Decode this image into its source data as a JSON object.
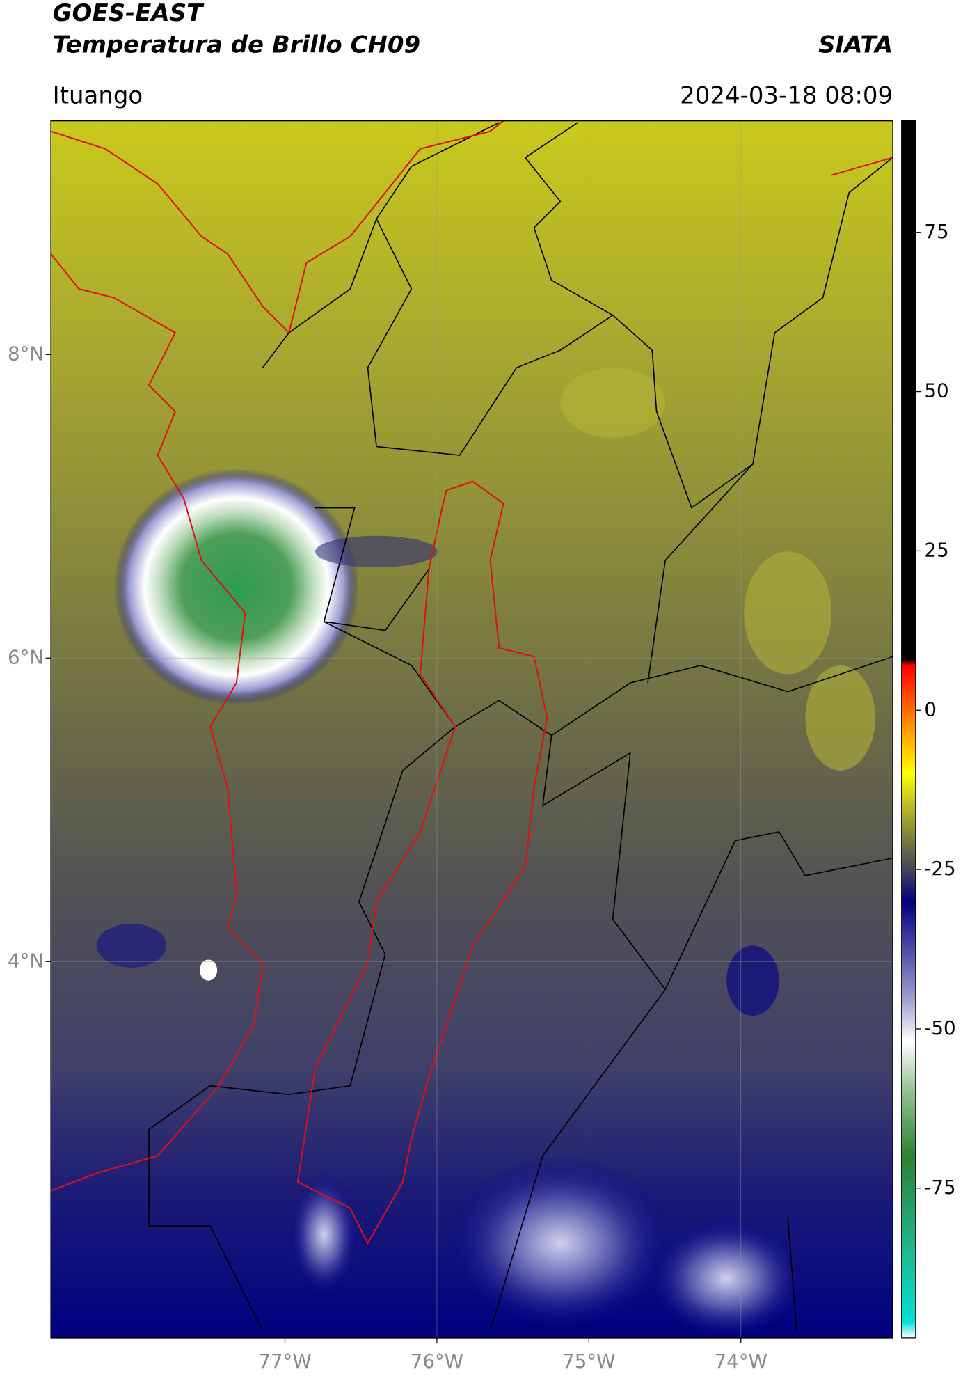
{
  "header": {
    "title": "GOES-EAST",
    "subtitle": "Temperatura de Brillo CH09",
    "source": "SIATA",
    "location": "Ituango",
    "datetime": "2024-03-18 08:09"
  },
  "map": {
    "lat_lim": [
      1.52,
      9.54
    ],
    "lon_lim": [
      -78.54,
      -73.0
    ],
    "lat_ticks": [
      {
        "value": 8,
        "label": "8°N"
      },
      {
        "value": 6,
        "label": "6°N"
      },
      {
        "value": 4,
        "label": "4°N"
      }
    ],
    "lon_ticks": [
      {
        "value": -77,
        "label": "77°W"
      },
      {
        "value": -76,
        "label": "76°W"
      },
      {
        "value": -75,
        "label": "75°W"
      },
      {
        "value": -74,
        "label": "74°W"
      }
    ],
    "grid": true
  },
  "colorbar": {
    "lim": [
      -98.5,
      92.5
    ],
    "ticks": [
      75,
      50,
      25,
      0,
      -25,
      -50,
      -75
    ],
    "stops": [
      [
        -98.5,
        "#ffffff"
      ],
      [
        -96,
        "#00e0d8"
      ],
      [
        -85,
        "#20b890"
      ],
      [
        -70,
        "#2e8034"
      ],
      [
        -60,
        "#90c090"
      ],
      [
        -52,
        "#ffffff"
      ],
      [
        -45,
        "#9a9ad0"
      ],
      [
        -30,
        "#000080"
      ],
      [
        -25,
        "#45455a"
      ],
      [
        -19,
        "#8a8a3a"
      ],
      [
        -14,
        "#c8c820"
      ],
      [
        -10,
        "#ffff00"
      ],
      [
        -3,
        "#ff9900"
      ],
      [
        7,
        "#ff0000"
      ],
      [
        8,
        "#000000"
      ],
      [
        92.5,
        "#000000"
      ]
    ]
  }
}
